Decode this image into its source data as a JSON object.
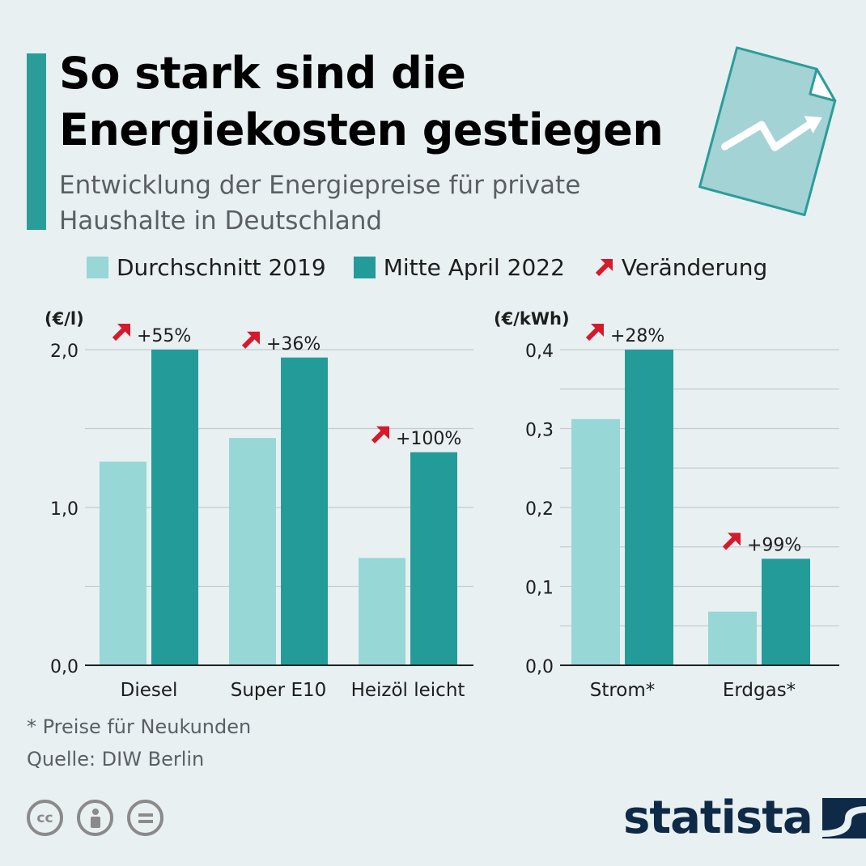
{
  "header": {
    "title_line1": "So stark sind die",
    "title_line2": "Energiekosten gestiegen",
    "subtitle_line1": "Entwicklung der Energiepreise für private",
    "subtitle_line2": "Haushalte in Deutschland"
  },
  "legend": {
    "item1": "Durchschnitt 2019",
    "item2": "Mitte April 2022",
    "item3": "Veränderung"
  },
  "colors": {
    "light": "#97d7d6",
    "dark": "#239c99",
    "arrow": "#d7192c",
    "grid": "#c5cbcf",
    "text": "#1d1d1d"
  },
  "chart_data": [
    {
      "type": "bar",
      "unit_label": "(€/l)",
      "categories": [
        "Diesel",
        "Super E10",
        "Heizöl leicht"
      ],
      "series": [
        {
          "name": "Durchschnitt 2019",
          "values": [
            1.29,
            1.44,
            0.68
          ]
        },
        {
          "name": "Mitte April 2022",
          "values": [
            2.0,
            1.95,
            1.35
          ]
        }
      ],
      "changes": [
        "+55%",
        "+36%",
        "+100%"
      ],
      "ylim": [
        0,
        2.0
      ],
      "yticks": [
        0,
        1.0,
        2.0
      ],
      "ytick_labels": [
        "0,0",
        "1,0",
        "2,0"
      ]
    },
    {
      "type": "bar",
      "unit_label": "(€/kWh)",
      "categories": [
        "Strom*",
        "Erdgas*"
      ],
      "series": [
        {
          "name": "Durchschnitt 2019",
          "values": [
            0.312,
            0.068
          ]
        },
        {
          "name": "Mitte April 2022",
          "values": [
            0.4,
            0.135
          ]
        }
      ],
      "changes": [
        "+28%",
        "+99%"
      ],
      "ylim": [
        0,
        0.4
      ],
      "yticks": [
        0,
        0.1,
        0.2,
        0.3,
        0.4
      ],
      "ytick_labels": [
        "0,0",
        "0,1",
        "0,2",
        "0,3",
        "0,4"
      ]
    }
  ],
  "footer": {
    "footnote": "* Preise für Neukunden",
    "source": "Quelle: DIW Berlin",
    "cc1": "cc",
    "brand": "statista"
  }
}
